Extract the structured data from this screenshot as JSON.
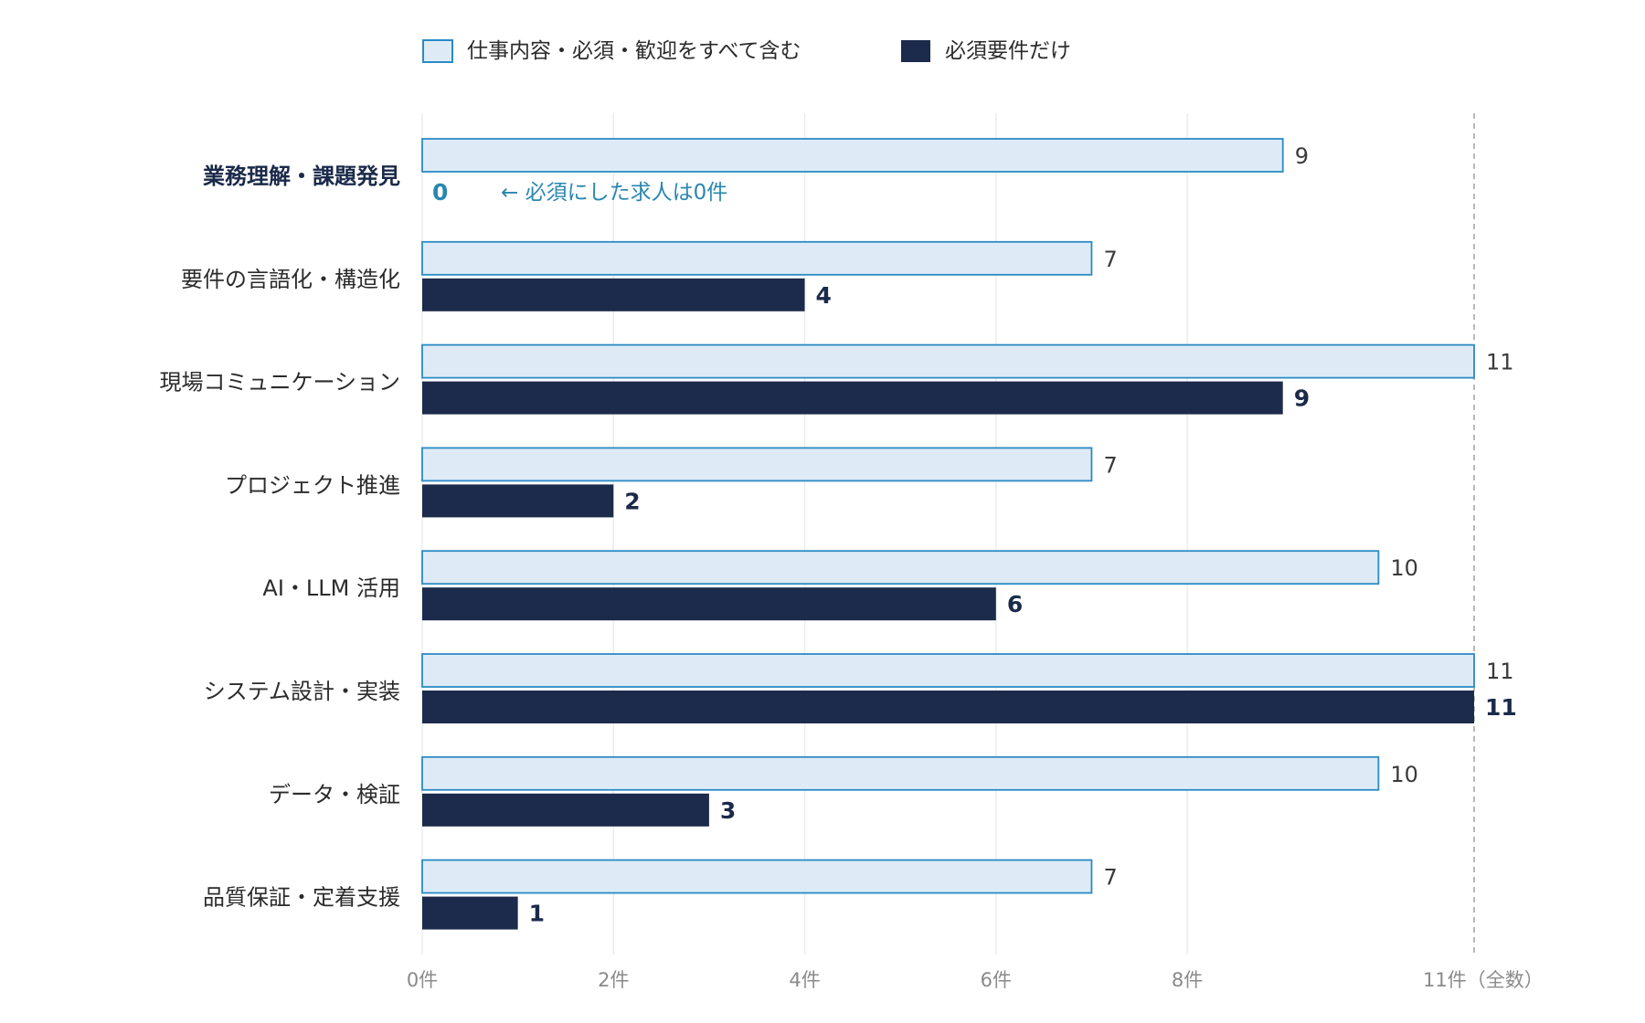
{
  "chart_data": {
    "type": "bar",
    "orientation": "horizontal",
    "categories": [
      "業務理解・課題発見",
      "要件の言語化・構造化",
      "現場コミュニケーション",
      "プロジェクト推進",
      "AI・LLM 活用",
      "システム設計・実装",
      "データ・検証",
      "品質保証・定着支援"
    ],
    "highlight_category": "業務理解・課題発見",
    "series": [
      {
        "name": "仕事内容・必須・歓迎をすべて含む",
        "values": [
          9,
          7,
          11,
          7,
          10,
          11,
          10,
          7
        ],
        "fill": "#deebf6",
        "stroke": "#2a8bc5"
      },
      {
        "name": "必須要件だけ",
        "values": [
          0,
          4,
          9,
          2,
          6,
          11,
          3,
          1
        ],
        "fill": "#1c2a4b"
      }
    ],
    "x_ticks": [
      {
        "value": 0,
        "label": "0件"
      },
      {
        "value": 2,
        "label": "2件"
      },
      {
        "value": 4,
        "label": "4件"
      },
      {
        "value": 6,
        "label": "6件"
      },
      {
        "value": 8,
        "label": "8件"
      },
      {
        "value": 11,
        "label": "11件（全数）"
      }
    ],
    "xlim": [
      0,
      11
    ],
    "reference_line": {
      "value": 11,
      "style": "dashed"
    },
    "annotation": {
      "category_index": 0,
      "text": "← 必須にした求人は0件"
    },
    "legend_position": "top",
    "grid": true,
    "colors": {
      "grid": "#e8ecf0",
      "reference": "#a6a6a6",
      "zero_label": "#2a86b0"
    }
  }
}
